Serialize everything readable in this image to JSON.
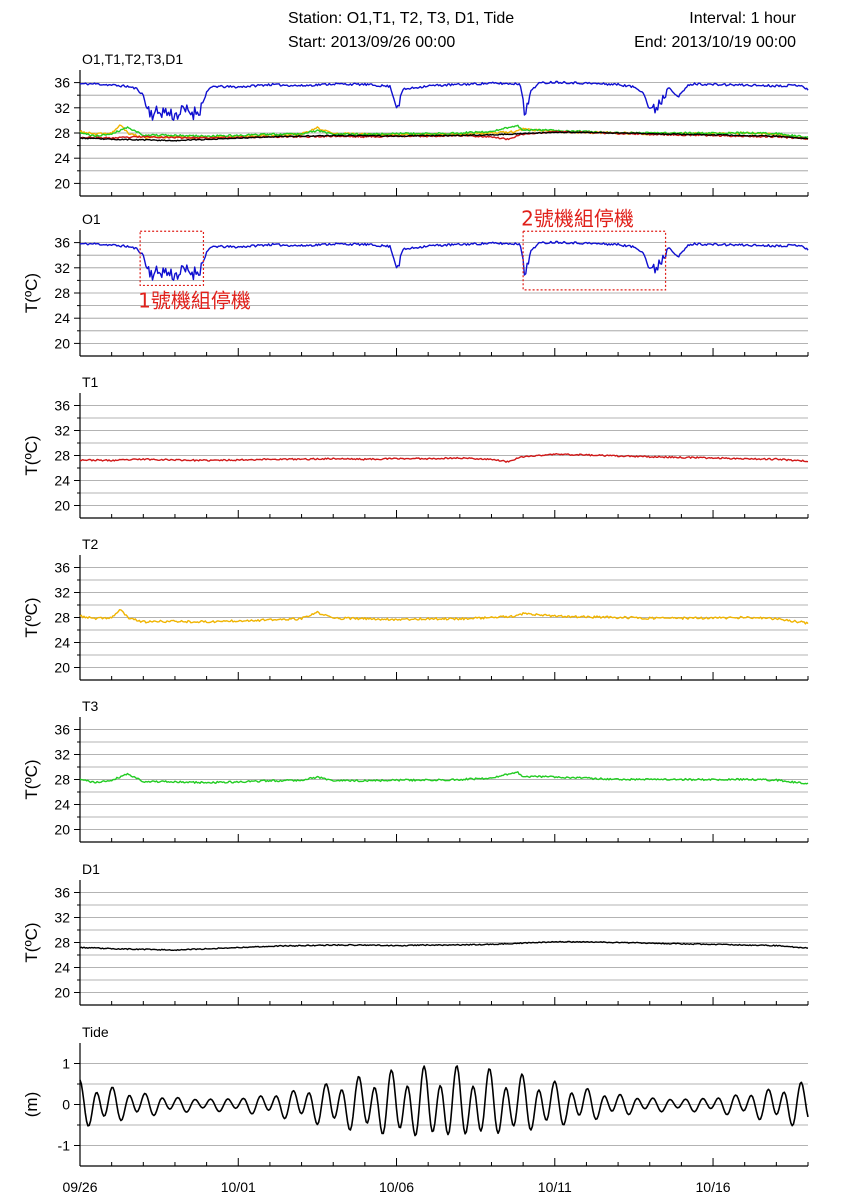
{
  "header": {
    "station": "Station: O1,T1, T2, T3, D1, Tide",
    "start": "Start: 2013/09/26 00:00",
    "interval": "Interval: 1 hour",
    "end": "End: 2013/10/19 00:00"
  },
  "colors": {
    "O1": "#1010d0",
    "T1": "#d01818",
    "T2": "#f0b400",
    "T3": "#22cc22",
    "D1": "#000000",
    "Tide": "#000000",
    "annotation": "#e0201a"
  },
  "chart_data": {
    "type": "line",
    "x_ticks": [
      "09/26",
      "10/01",
      "10/06",
      "10/11",
      "10/16"
    ],
    "x_tick_days": [
      0,
      5,
      10,
      15,
      20
    ],
    "x_range_days": [
      0,
      23
    ],
    "panels": [
      {
        "title": "O1,T1,T2,T3,D1",
        "ylabel": "",
        "ylim": [
          18,
          38
        ],
        "yticks": [
          20,
          24,
          28,
          32,
          36
        ],
        "series": [
          "O1",
          "T1",
          "T2",
          "T3",
          "D1"
        ]
      },
      {
        "title": "O1",
        "ylabel": "T(ºC)",
        "ylim": [
          18,
          38
        ],
        "yticks": [
          20,
          24,
          28,
          32,
          36
        ],
        "series": [
          "O1"
        ],
        "annotations": [
          {
            "label": "1號機組停機",
            "x_range": [
              1.9,
              3.9
            ],
            "y_range": [
              29.2,
              37.8
            ]
          },
          {
            "label": "2號機組停機",
            "x_range": [
              14.0,
              18.5
            ],
            "y_range": [
              28.5,
              37.8
            ]
          }
        ]
      },
      {
        "title": "T1",
        "ylabel": "T(ºC)",
        "ylim": [
          18,
          38
        ],
        "yticks": [
          20,
          24,
          28,
          32,
          36
        ],
        "series": [
          "T1"
        ]
      },
      {
        "title": "T2",
        "ylabel": "T(ºC)",
        "ylim": [
          18,
          38
        ],
        "yticks": [
          20,
          24,
          28,
          32,
          36
        ],
        "series": [
          "T2"
        ]
      },
      {
        "title": "T3",
        "ylabel": "T(ºC)",
        "ylim": [
          18,
          38
        ],
        "yticks": [
          20,
          24,
          28,
          32,
          36
        ],
        "series": [
          "T3"
        ]
      },
      {
        "title": "D1",
        "ylabel": "T(ºC)",
        "ylim": [
          18,
          38
        ],
        "yticks": [
          20,
          24,
          28,
          32,
          36
        ],
        "series": [
          "D1"
        ]
      },
      {
        "title": "Tide",
        "ylabel": "(m)",
        "ylim": [
          -1.5,
          1.5
        ],
        "yticks": [
          -1,
          0,
          1
        ],
        "series": [
          "Tide"
        ]
      }
    ],
    "series": {
      "O1": {
        "x": [
          0,
          0.5,
          1.0,
          1.5,
          1.8,
          2.0,
          2.1,
          2.3,
          2.6,
          3.0,
          3.3,
          3.6,
          3.8,
          3.9,
          4.0,
          4.2,
          5.0,
          6.0,
          7.0,
          8.0,
          9.0,
          9.8,
          9.95,
          10.05,
          10.2,
          11.0,
          12.0,
          13.0,
          13.9,
          14.0,
          14.05,
          14.1,
          14.25,
          14.5,
          15.0,
          16.0,
          17.0,
          17.5,
          17.8,
          17.95,
          18.1,
          18.25,
          18.4,
          18.6,
          18.9,
          19.2,
          19.4,
          20.0,
          21.0,
          22.0,
          22.8,
          23.0
        ],
        "values": [
          35.8,
          35.8,
          35.6,
          35.4,
          35.0,
          34.0,
          32.0,
          31.0,
          31.5,
          30.8,
          31.6,
          31.2,
          31.8,
          33.0,
          34.5,
          35.4,
          35.3,
          35.7,
          35.5,
          35.8,
          35.7,
          35.4,
          33.0,
          32.6,
          34.9,
          35.5,
          35.7,
          35.9,
          35.8,
          33.5,
          31.5,
          31.2,
          34.8,
          35.9,
          36.1,
          35.9,
          35.7,
          35.3,
          34.5,
          32.2,
          31.4,
          32.5,
          33.5,
          35.4,
          33.7,
          35.5,
          35.8,
          35.7,
          35.6,
          35.5,
          35.6,
          34.8
        ]
      },
      "T1": {
        "x": [
          0,
          1,
          2,
          3,
          4,
          5,
          6,
          7,
          8,
          9,
          10,
          11,
          12,
          13,
          13.5,
          14,
          15,
          16,
          17,
          18,
          19,
          20,
          21,
          22,
          23
        ],
        "values": [
          27.3,
          27.2,
          27.4,
          27.3,
          27.2,
          27.3,
          27.4,
          27.4,
          27.5,
          27.4,
          27.5,
          27.5,
          27.6,
          27.4,
          27.0,
          27.8,
          28.2,
          28.1,
          27.9,
          27.8,
          27.7,
          27.6,
          27.5,
          27.4,
          27.1
        ]
      },
      "T2": {
        "x": [
          0,
          0.5,
          1,
          1.3,
          1.5,
          2,
          3,
          4,
          5,
          6,
          7,
          7.5,
          8,
          9,
          10,
          11,
          12,
          13,
          13.8,
          14,
          15,
          16,
          17,
          18,
          19,
          20,
          21,
          22,
          23
        ],
        "values": [
          28.2,
          27.8,
          28.0,
          29.3,
          28.0,
          27.3,
          27.4,
          27.3,
          27.5,
          27.6,
          27.8,
          28.8,
          27.9,
          27.8,
          27.7,
          27.8,
          27.8,
          28.0,
          28.2,
          28.6,
          28.2,
          28.1,
          28.0,
          27.9,
          27.9,
          27.9,
          28.0,
          27.8,
          27.1
        ]
      },
      "T3": {
        "x": [
          0,
          0.5,
          1,
          1.5,
          2,
          3,
          4,
          5,
          6,
          7,
          7.5,
          8,
          9,
          10,
          11,
          12,
          13,
          13.8,
          14,
          15,
          16,
          17,
          18,
          19,
          20,
          21,
          22,
          23
        ],
        "values": [
          28.0,
          27.5,
          27.9,
          28.9,
          27.7,
          27.6,
          27.5,
          27.6,
          27.8,
          27.9,
          28.4,
          27.8,
          27.8,
          27.9,
          27.9,
          28.0,
          28.2,
          29.2,
          28.5,
          28.4,
          28.2,
          28.0,
          28.0,
          28.0,
          28.0,
          28.0,
          27.9,
          27.3
        ]
      },
      "D1": {
        "x": [
          0,
          1,
          2,
          3,
          4,
          5,
          6,
          7,
          8,
          9,
          10,
          11,
          12,
          13,
          14,
          15,
          16,
          17,
          18,
          19,
          20,
          21,
          22,
          23
        ],
        "values": [
          27.2,
          27.0,
          26.9,
          26.8,
          27.0,
          27.2,
          27.4,
          27.5,
          27.6,
          27.6,
          27.5,
          27.6,
          27.6,
          27.7,
          27.9,
          28.1,
          28.1,
          28.0,
          27.9,
          27.8,
          27.7,
          27.6,
          27.5,
          27.1
        ]
      },
      "Tide": {
        "model": "two-constituent tidal curve, hourly",
        "amplitude_min": 0.15,
        "amplitude_max": 0.85,
        "peak_amplitude_day": 11.5,
        "range_observed": [
          -0.9,
          0.95
        ]
      }
    }
  },
  "labels": {
    "ylabel_temp": "T(ºC)",
    "ylabel_tide": "(m)",
    "annot1": "1號機組停機",
    "annot2": "2號機組停機"
  }
}
